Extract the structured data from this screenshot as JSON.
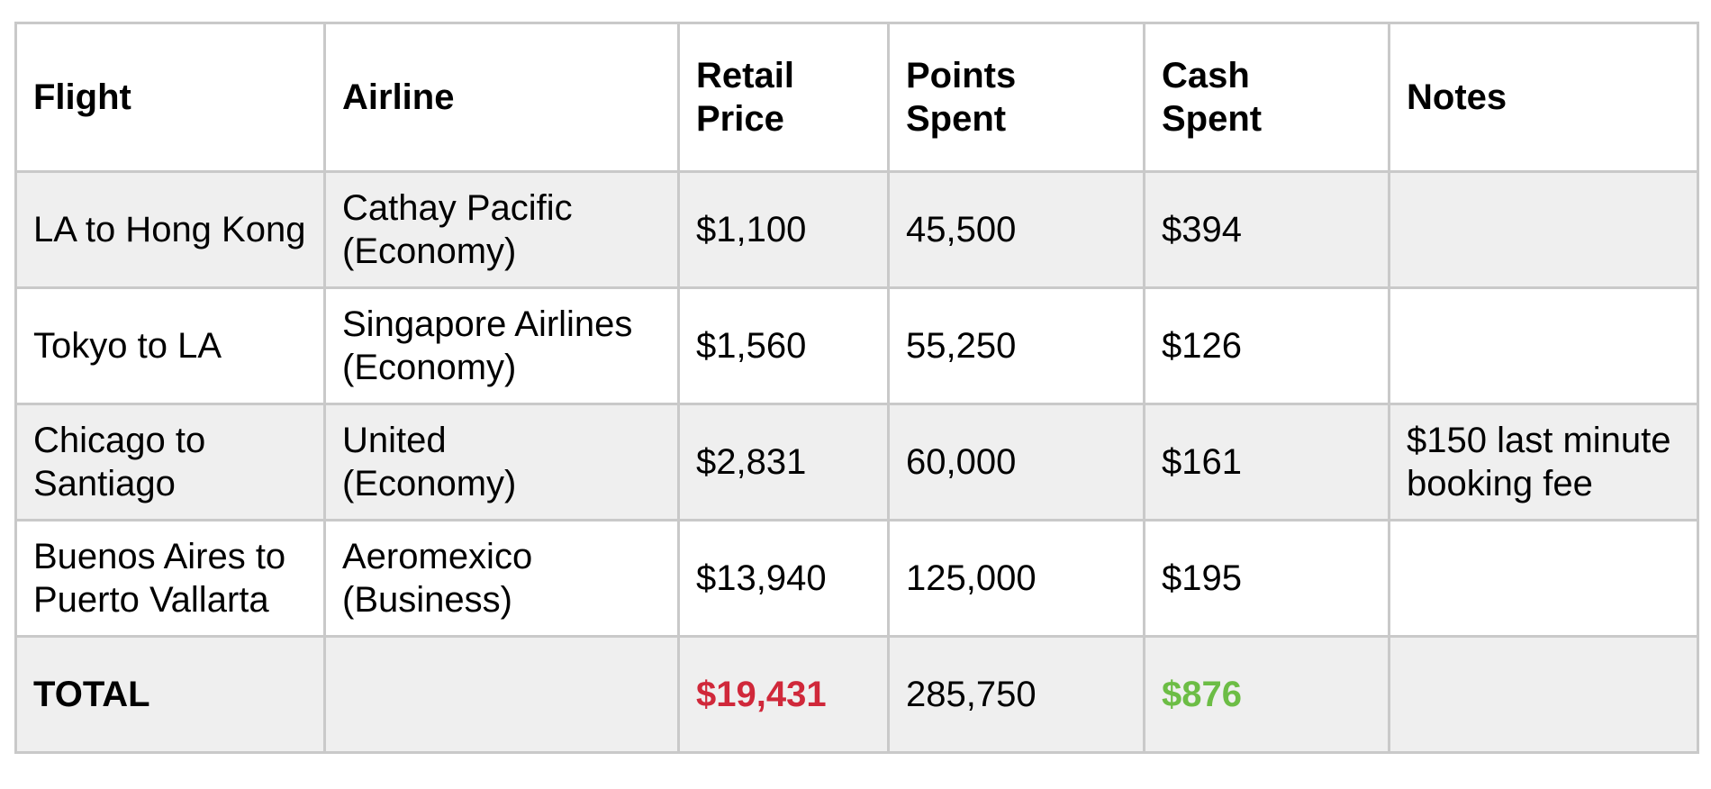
{
  "table": {
    "headers": [
      "Flight",
      "Airline",
      "Retail\nPrice",
      "Points\nSpent",
      "Cash\nSpent",
      "Notes"
    ],
    "rows": [
      [
        "LA to Hong Kong",
        "Cathay Pacific\n(Economy)",
        "$1,100",
        "45,500",
        "$394",
        ""
      ],
      [
        "Tokyo to LA",
        "Singapore Airlines\n(Economy)",
        "$1,560",
        "55,250",
        "$126",
        ""
      ],
      [
        "Chicago to\nSantiago",
        "United\n(Economy)",
        "$2,831",
        "60,000",
        "$161",
        "$150 last minute\nbooking fee"
      ],
      [
        "Buenos Aires to\nPuerto Vallarta",
        "Aeromexico\n(Business)",
        "$13,940",
        "125,000",
        "$195",
        ""
      ]
    ],
    "total": {
      "label": "TOTAL",
      "airline": "",
      "retail_price": "$19,431",
      "points_spent": "285,750",
      "cash_spent": "$876",
      "notes": ""
    }
  },
  "colors": {
    "border": "#c9c9c9",
    "shaded_row": "#efefef",
    "total_retail": "#d0283a",
    "total_cash": "#6cbd45"
  }
}
